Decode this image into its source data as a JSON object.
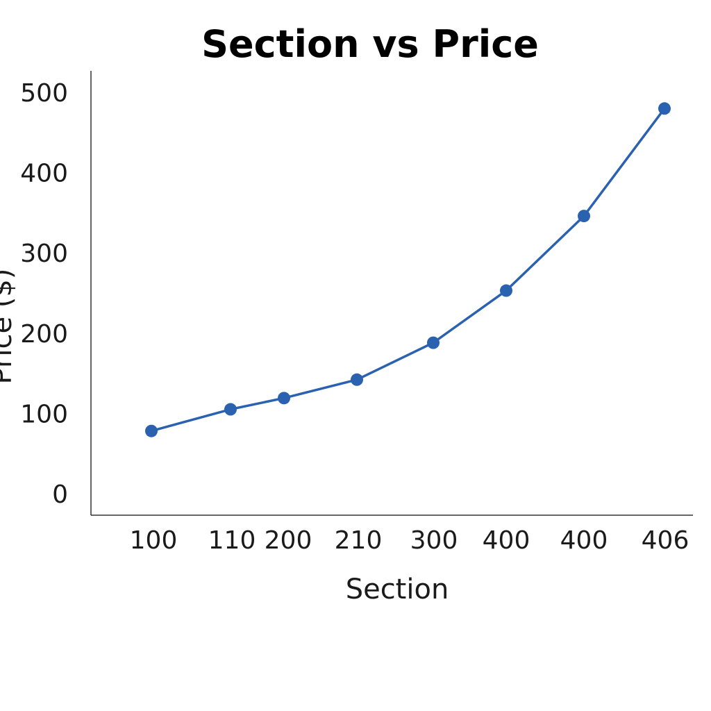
{
  "chart_data": {
    "type": "line",
    "title": "Section vs Price",
    "xlabel": "Section",
    "ylabel": "Price ($)",
    "categories": [
      "100",
      "110",
      "200",
      "210",
      "300",
      "400",
      "400",
      "406"
    ],
    "x": [
      100,
      110,
      200,
      210,
      300,
      400,
      400,
      406
    ],
    "series": [
      {
        "values": [
          78,
          105,
          119,
          142,
          188,
          253,
          346,
          480
        ]
      }
    ],
    "yticks": [
      0,
      100,
      200,
      300,
      400,
      500
    ],
    "ylim": [
      -27,
      527
    ],
    "grid": false,
    "legend": "none",
    "colors": {
      "line": "#2a62b0",
      "marker": "#2a62b0",
      "axis": "#333333"
    }
  }
}
